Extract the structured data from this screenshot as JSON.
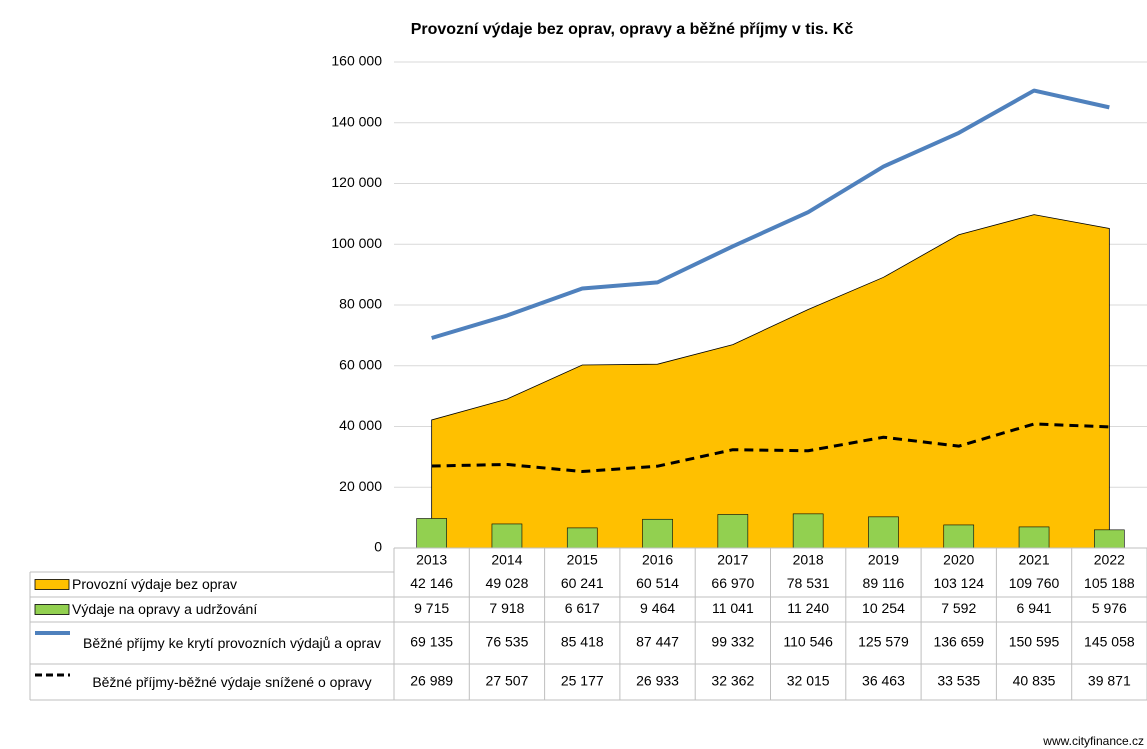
{
  "chart_data": {
    "type": "combo",
    "title": "Provozní výdaje bez oprav, opravy a běžné příjmy v tis. Kč",
    "categories": [
      "2013",
      "2014",
      "2015",
      "2016",
      "2017",
      "2018",
      "2019",
      "2020",
      "2021",
      "2022"
    ],
    "series": [
      {
        "name": "Provozní výdaje bez oprav",
        "type": "area",
        "color": "#ffc000",
        "values": [
          42146,
          49028,
          60241,
          60514,
          66970,
          78531,
          89116,
          103124,
          109760,
          105188
        ],
        "value_labels": [
          "42 146",
          "49 028",
          "60 241",
          "60 514",
          "66 970",
          "78 531",
          "89 116",
          "103 124",
          "109 760",
          "105 188"
        ]
      },
      {
        "name": "Výdaje na opravy a udržování",
        "type": "bar",
        "color": "#92d050",
        "values": [
          9715,
          7918,
          6617,
          9464,
          11041,
          11240,
          10254,
          7592,
          6941,
          5976
        ],
        "value_labels": [
          "9 715",
          "7 918",
          "6 617",
          "9 464",
          "11 041",
          "11 240",
          "10 254",
          "7 592",
          "6 941",
          "5 976"
        ]
      },
      {
        "name": "Běžné příjmy ke krytí provozních výdajů a oprav",
        "type": "line",
        "color": "#4f81bd",
        "values": [
          69135,
          76535,
          85418,
          87447,
          99332,
          110546,
          125579,
          136659,
          150595,
          145058
        ],
        "value_labels": [
          "69 135",
          "76 535",
          "85 418",
          "87 447",
          "99 332",
          "110 546",
          "125 579",
          "136 659",
          "150 595",
          "145 058"
        ]
      },
      {
        "name": "Běžné příjmy-běžné výdaje snížené o opravy",
        "type": "dashed-line",
        "color": "#000000",
        "values": [
          26989,
          27507,
          25177,
          26933,
          32362,
          32015,
          36463,
          33535,
          40835,
          39871
        ],
        "value_labels": [
          "26 989",
          "27 507",
          "25 177",
          "26 933",
          "32 362",
          "32 015",
          "36 463",
          "33 535",
          "40 835",
          "39 871"
        ]
      }
    ],
    "ylim": [
      0,
      160000
    ],
    "yticks": [
      0,
      {
        "value": 20000,
        "label": "20 000"
      },
      {
        "value": 40000,
        "label": "40 000"
      },
      {
        "value": 60000,
        "label": "60 000"
      },
      {
        "value": 80000,
        "label": "80 000"
      },
      {
        "value": 100000,
        "label": "100 000"
      },
      {
        "value": 120000,
        "label": "120 000"
      },
      {
        "value": 140000,
        "label": "140 000"
      },
      {
        "value": 160000,
        "label": "160 000"
      }
    ],
    "grid": true,
    "source": "www.cityfinance.cz"
  }
}
